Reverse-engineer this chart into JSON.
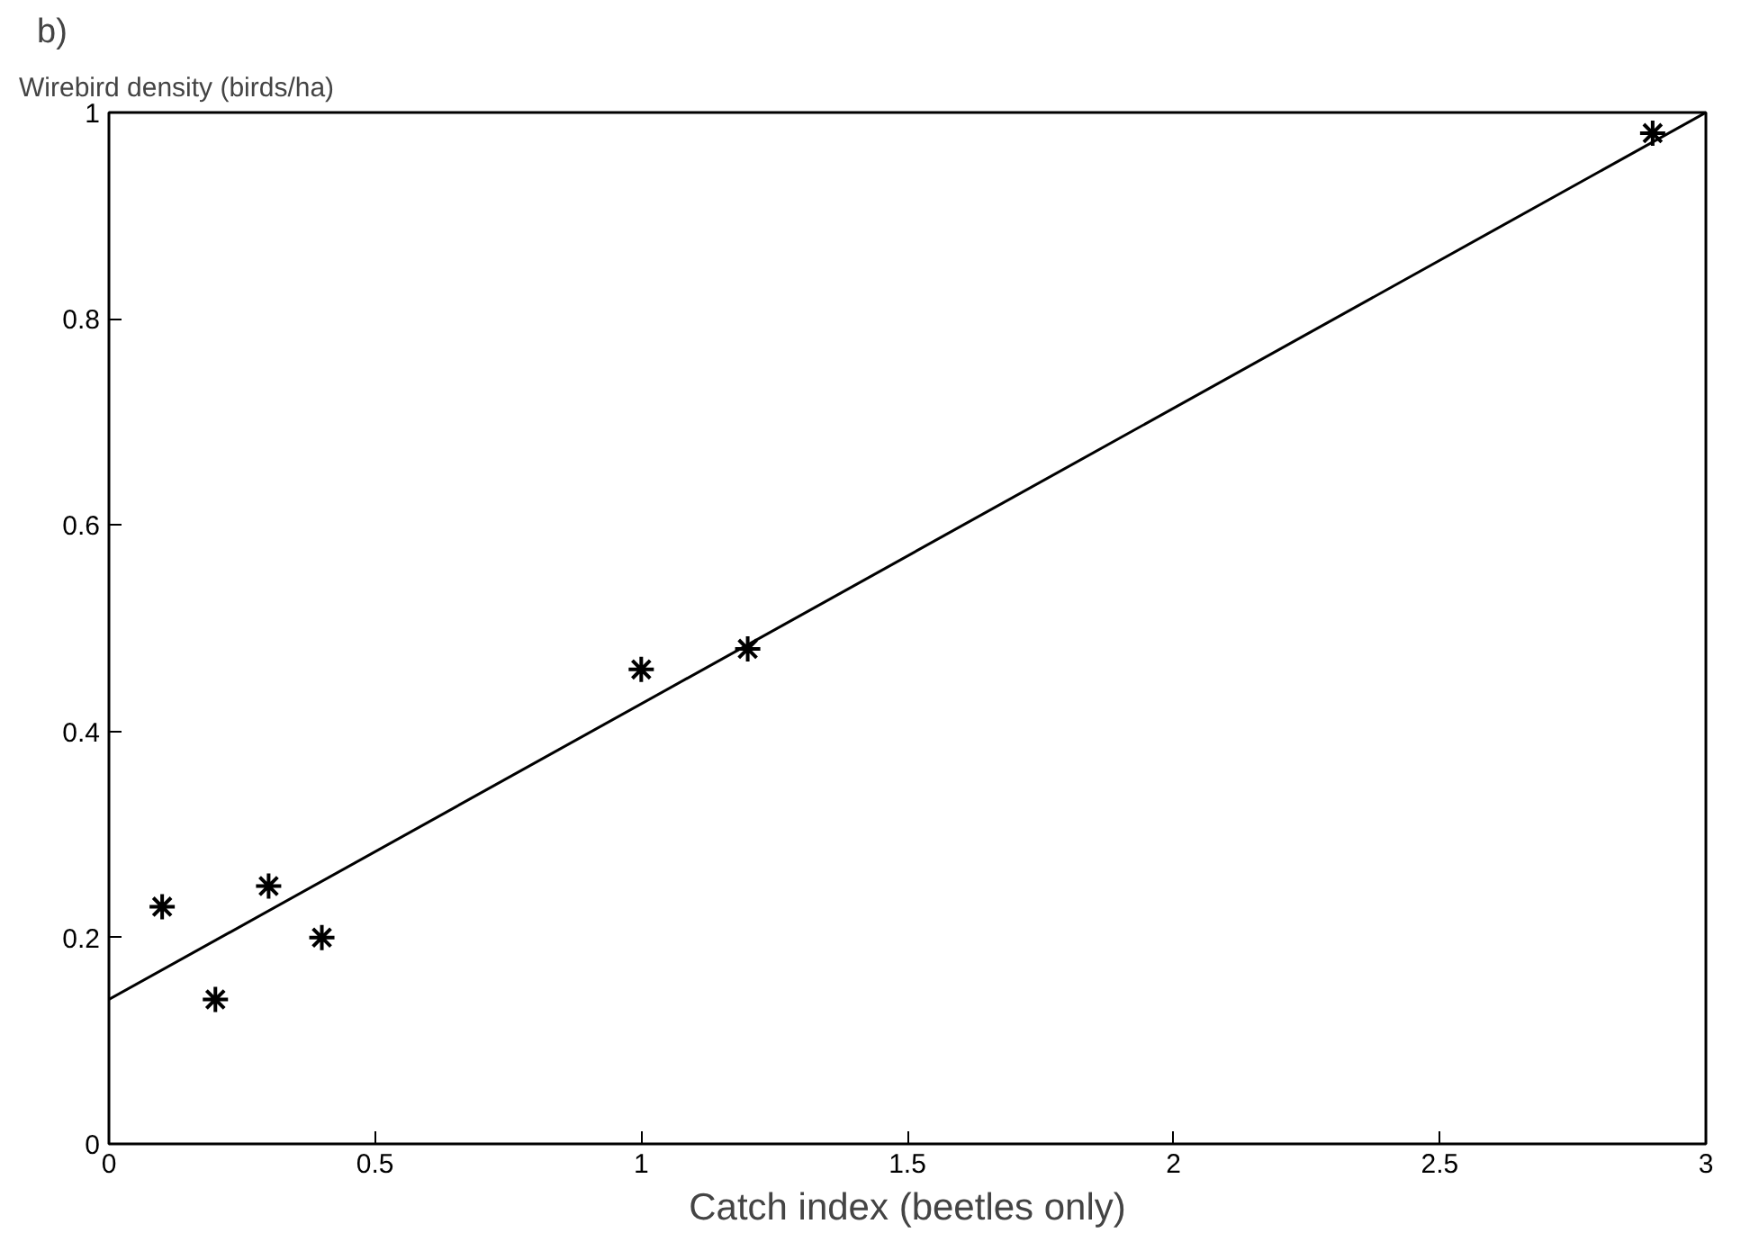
{
  "chart_data": {
    "type": "scatter",
    "title": "b)",
    "xlabel": "Catch index (beetles only)",
    "ylabel": "Wirebird density (birds/ha)",
    "xlim": [
      0,
      3
    ],
    "xticks": [
      0,
      0.5,
      1,
      1.5,
      2,
      2.5,
      3
    ],
    "ylim": [
      0,
      1
    ],
    "yticks": [
      0,
      0.2,
      0.4,
      0.6,
      0.8,
      1
    ],
    "grid": false,
    "series": [
      {
        "marker": "cross",
        "color": "#000000",
        "x": [
          0.1,
          0.2,
          0.3,
          0.4,
          1.0,
          1.2,
          2.9
        ],
        "values": [
          0.23,
          0.14,
          0.25,
          0.2,
          0.46,
          0.48,
          0.98
        ]
      },
      {
        "type": "line",
        "line_style": "solid",
        "color": "#000000",
        "x": [
          0,
          3
        ],
        "values": [
          0.14,
          1.0
        ]
      }
    ]
  }
}
